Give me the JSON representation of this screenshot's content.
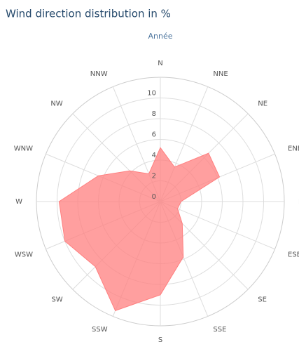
{
  "chart_data": {
    "type": "radar",
    "title": "Wind direction distribution in %",
    "subtitle": "Année",
    "categories": [
      "N",
      "NNE",
      "NE",
      "ENE",
      "E",
      "ESE",
      "SE",
      "SSE",
      "S",
      "SSW",
      "SW",
      "WSW",
      "W",
      "WNW",
      "NW",
      "NNW"
    ],
    "values": [
      5.2,
      3.6,
      6.6,
      6.2,
      2,
      1.8,
      3,
      5.8,
      9,
      11.4,
      8.9,
      10,
      9.8,
      6.5,
      4.2,
      2.9
    ],
    "color": "#ff7f7f",
    "ylim": [
      0,
      12
    ],
    "yticks": [
      0,
      2,
      4,
      6,
      8,
      10
    ],
    "grid": true
  }
}
